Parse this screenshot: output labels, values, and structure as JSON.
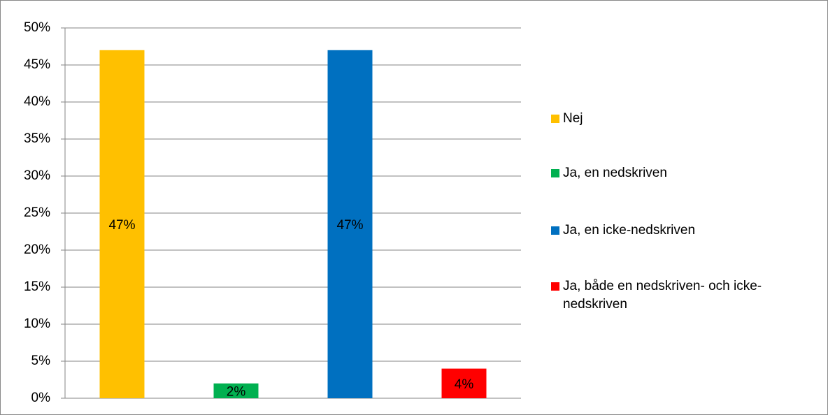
{
  "chart_data": {
    "type": "bar",
    "series": [
      {
        "name": "Nej",
        "color": "#ffc000",
        "values": [
          47
        ],
        "value_labels": [
          "47%"
        ]
      },
      {
        "name": "Ja, en nedskriven",
        "color": "#00b050",
        "values": [
          2
        ],
        "value_labels": [
          "2%"
        ]
      },
      {
        "name": "Ja, en icke-nedskriven",
        "color": "#0070c0",
        "values": [
          47
        ],
        "value_labels": [
          "47%"
        ]
      },
      {
        "name": "Ja, både en nedskriven- och icke-nedskriven",
        "color": "#ff0000",
        "values": [
          4
        ],
        "value_labels": [
          "4%"
        ]
      }
    ],
    "ylim": [
      0,
      50
    ],
    "yticks": [
      {
        "value": 0,
        "label": "0%"
      },
      {
        "value": 5,
        "label": "5%"
      },
      {
        "value": 10,
        "label": "10%"
      },
      {
        "value": 15,
        "label": "15%"
      },
      {
        "value": 20,
        "label": "20%"
      },
      {
        "value": 25,
        "label": "25%"
      },
      {
        "value": 30,
        "label": "30%"
      },
      {
        "value": 35,
        "label": "35%"
      },
      {
        "value": 40,
        "label": "40%"
      },
      {
        "value": 45,
        "label": "45%"
      },
      {
        "value": 50,
        "label": "50%"
      }
    ],
    "grid": true,
    "legend": "right"
  }
}
